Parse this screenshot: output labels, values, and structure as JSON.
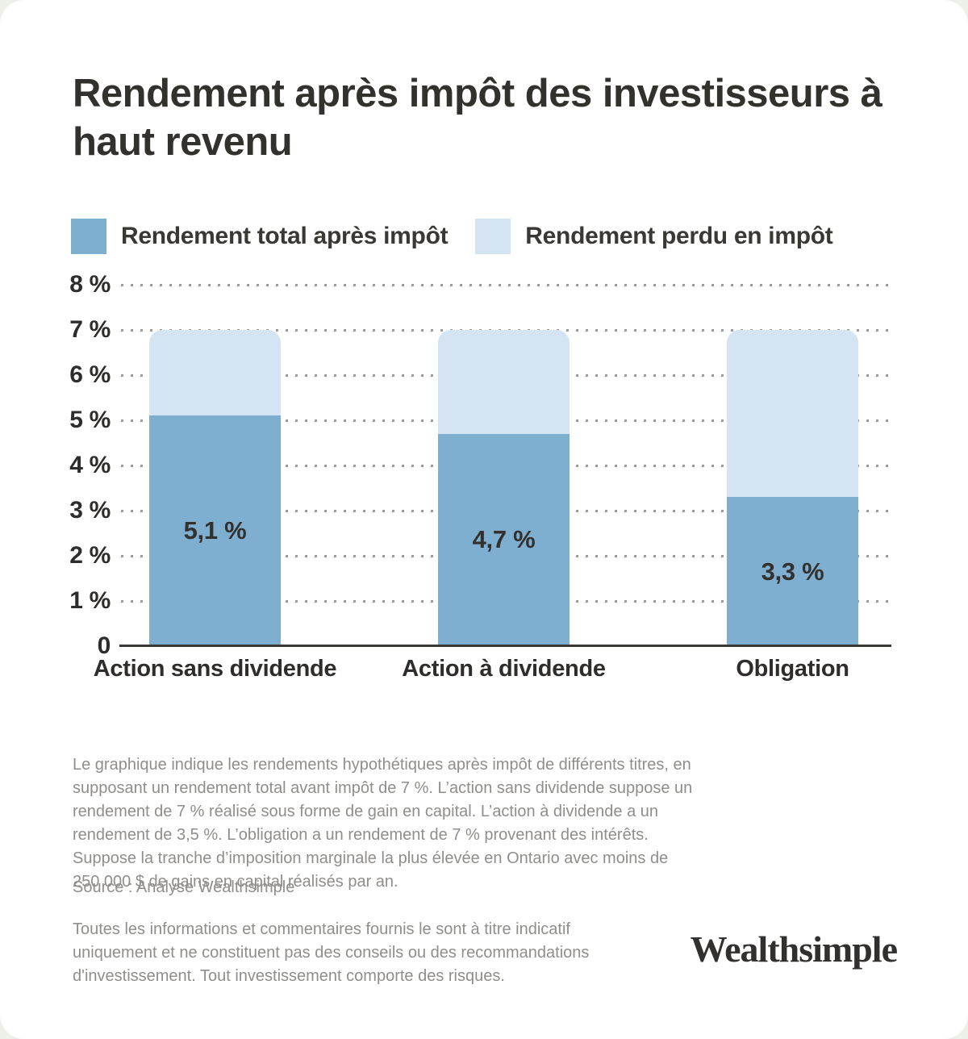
{
  "page": {
    "outer_background": "#EDEFE9",
    "card_background": "#FFFFFF"
  },
  "title": {
    "text": "Rendement après impôt des investisseurs à haut revenu",
    "lines": [
      "Rendement après impôt des investisseurs à",
      "haut revenu"
    ]
  },
  "legend": {
    "items": [
      {
        "label": "Rendement total après impôt",
        "color": "#7FAFD0"
      },
      {
        "label": "Rendement perdu en impôt",
        "color": "#D4E4F2"
      }
    ]
  },
  "chart_data": {
    "type": "bar",
    "stacked": true,
    "title": "Rendement après impôt des investisseurs à haut revenu",
    "categories": [
      "Action sans dividende",
      "Action à dividende",
      "Obligation"
    ],
    "series": [
      {
        "name": "Rendement total après impôt",
        "values": [
          5.1,
          4.7,
          3.3
        ],
        "data_labels": [
          "5,1 %",
          "4,7 %",
          "3,3 %"
        ],
        "color": "#7FAFD0"
      },
      {
        "name": "Rendement perdu en impôt",
        "values": [
          1.9,
          2.3,
          3.7
        ],
        "color": "#D4E4F2"
      }
    ],
    "stack_total": 7,
    "xlabel": "",
    "ylabel": "",
    "ylim": [
      0,
      8
    ],
    "y_ticks": [
      {
        "value": 8,
        "label": "8 %"
      },
      {
        "value": 7,
        "label": "7 %"
      },
      {
        "value": 6,
        "label": "6 %"
      },
      {
        "value": 5,
        "label": "5 %"
      },
      {
        "value": 4,
        "label": "4 %"
      },
      {
        "value": 3,
        "label": "3 %"
      },
      {
        "value": 2,
        "label": "2 %"
      },
      {
        "value": 1,
        "label": "1 %"
      },
      {
        "value": 0,
        "label": "0"
      }
    ],
    "grid": "horizontal-dotted",
    "legend_position": "top"
  },
  "notes": {
    "methodology": "Le graphique indique les rendements hypothétiques après impôt de différents titres, en supposant un rendement total avant impôt de 7 %. L’action sans dividende suppose un rendement de 7 % réalisé sous forme de gain en capital. L’action à dividende a un rendement de 3,5 %. L’obligation a un rendement de 7 % provenant des intérêts. Suppose la tranche d’imposition marginale la plus élevée en Ontario avec moins de 250 000 $ de gains en capital réalisés par an.",
    "source": "Source : Analyse Wealthsimple",
    "disclaimer": "Toutes les informations et commentaires fournis le sont à titre indicatif uniquement et ne constituent pas des conseils ou des recommandations d'investissement. Tout investissement comporte des risques."
  },
  "footer": {
    "logo_text": "Wealthsimple"
  }
}
